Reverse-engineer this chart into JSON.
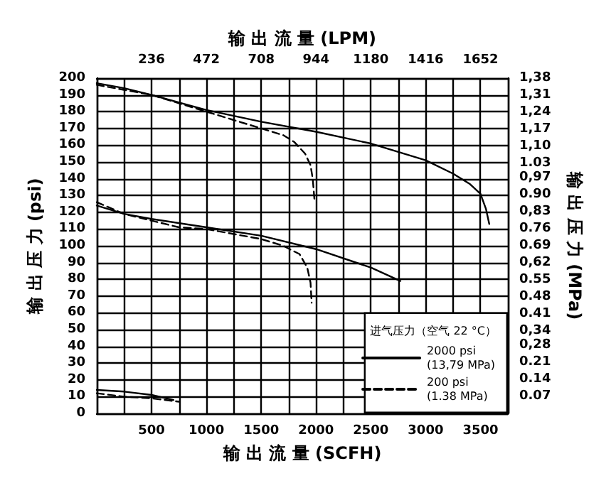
{
  "chart_data": {
    "type": "line",
    "xlabel": "输 出 流 量 (SCFH)",
    "x2label": "输 出 流 量 (LPM)",
    "ylabel": "输 出 压 力 (psi)",
    "y2label": "输 出 压 力 (MPa)",
    "legend_title": "进气压力（空气 22 °C）",
    "xlim": [
      0,
      3750
    ],
    "xticks": [
      {
        "value": 0,
        "label": null
      },
      {
        "value": 250,
        "label": null
      },
      500,
      {
        "value": 750,
        "label": null
      },
      1000,
      {
        "value": 1250,
        "label": null
      },
      1500,
      {
        "value": 1750,
        "label": null
      },
      2000,
      {
        "value": 2250,
        "label": null
      },
      2500,
      {
        "value": 2750,
        "label": null
      },
      3000,
      {
        "value": 3250,
        "label": null
      },
      3500,
      {
        "value": 3750,
        "label": null
      }
    ],
    "x2lim": [
      0,
      1770
    ],
    "x2ticks": [
      236,
      472,
      708,
      944,
      1180,
      1416,
      1652
    ],
    "ylim": [
      0,
      200
    ],
    "yticks": [
      0,
      10,
      20,
      30,
      40,
      50,
      60,
      70,
      80,
      90,
      100,
      110,
      120,
      130,
      140,
      150,
      160,
      170,
      180,
      190,
      200
    ],
    "y2lim": [
      0,
      1.38
    ],
    "y2ticks": [
      0.07,
      0.14,
      0.21,
      {
        "value": 0.28,
        "label": "0,28"
      },
      {
        "value": 0.34,
        "label": "0,34"
      },
      0.41,
      0.48,
      0.55,
      {
        "value": 0.62,
        "label": "0,62"
      },
      0.69,
      0.76,
      {
        "value": 0.83,
        "label": "0,83"
      },
      {
        "value": 0.9,
        "label": "0.90"
      },
      {
        "value": 0.97,
        "label": "0,97"
      },
      1.03,
      {
        "value": 1.1,
        "label": "1,10"
      },
      {
        "value": 1.17,
        "label": "1,17"
      },
      {
        "value": 1.24,
        "label": "1,24"
      },
      {
        "value": 1.31,
        "label": "1,31"
      },
      {
        "value": 1.38,
        "label": "1,38"
      }
    ],
    "grid": true,
    "legend": "bottom right",
    "marker": "none",
    "series": [
      {
        "name": "2000 psi\n(13,79 MPa)",
        "color": "#000000",
        "line_style": "solid",
        "x": [
          0,
          250,
          500,
          1000,
          1500,
          2000,
          2500,
          3000,
          3250,
          3400,
          3500,
          3550,
          3580,
          null,
          0,
          250,
          500,
          1000,
          1500,
          2000,
          2500,
          2770,
          null,
          0,
          250,
          500,
          700
        ],
        "values": [
          197,
          194,
          190,
          181,
          174,
          168,
          161,
          151,
          143,
          137,
          131,
          122,
          113,
          null,
          124,
          119,
          116,
          111,
          106,
          98,
          87,
          79,
          null,
          14,
          13,
          11,
          8
        ]
      },
      {
        "name": "200 psi\n(1.38 MPa)",
        "color": "#000000",
        "line_style": "dashed",
        "x": [
          0,
          500,
          1000,
          1250,
          1500,
          1700,
          1800,
          1900,
          1950,
          1970,
          1985,
          null,
          0,
          250,
          500,
          750,
          1000,
          1250,
          1500,
          1700,
          1850,
          1920,
          1950,
          1960,
          null,
          0,
          250,
          500,
          750
        ],
        "values": [
          196,
          190,
          180,
          175,
          170,
          166,
          162,
          155,
          148,
          140,
          128,
          null,
          126,
          119,
          115,
          111,
          110,
          107,
          104,
          100,
          95,
          87,
          78,
          66,
          null,
          12,
          10,
          9,
          7
        ]
      }
    ]
  }
}
